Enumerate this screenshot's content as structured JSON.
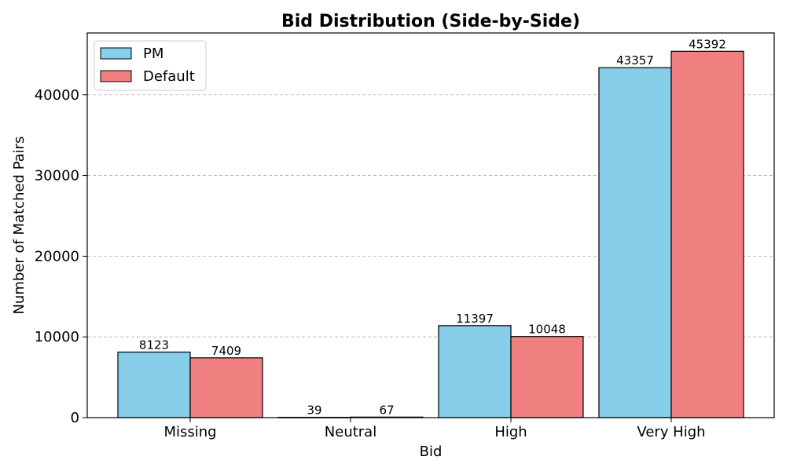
{
  "chart_data": {
    "type": "bar",
    "title": "Bid Distribution (Side-by-Side)",
    "xlabel": "Bid",
    "ylabel": "Number of Matched Pairs",
    "categories": [
      "Missing",
      "Neutral",
      "High",
      "Very High"
    ],
    "series": [
      {
        "name": "PM",
        "color": "#87CEEB",
        "values": [
          8123,
          39,
          11397,
          43357
        ]
      },
      {
        "name": "Default",
        "color": "#F08080",
        "values": [
          7409,
          67,
          10048,
          45392
        ]
      }
    ],
    "ylim": [
      0,
      47661
    ],
    "yticks": [
      0,
      10000,
      20000,
      30000,
      40000
    ],
    "grid": "y-dashed",
    "legend": "upper-left",
    "data_labels": true
  }
}
